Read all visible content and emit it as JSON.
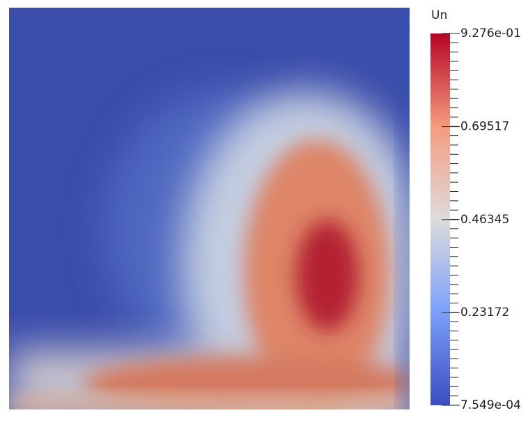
{
  "chart_data": {
    "type": "colormap-field",
    "legend_title": "Un",
    "ylim": [
      0.0007549,
      0.9276
    ],
    "yticks": [
      {
        "value": 0.9276,
        "label": "9.276e-01"
      },
      0.69517,
      0.46345,
      0.23172,
      {
        "value": 0.0007549,
        "label": "7.549e-04"
      }
    ],
    "colormap": [
      "#3b4cc0",
      "#7b9ff9",
      "#dddcdc",
      "#f59c7d",
      "#b40426"
    ]
  }
}
